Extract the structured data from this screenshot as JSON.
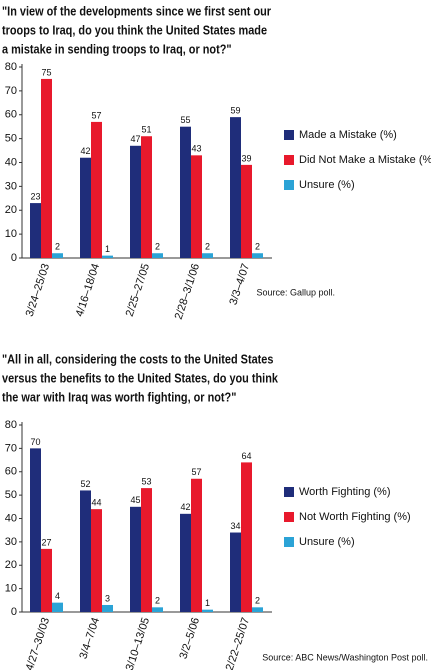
{
  "chart_data": [
    {
      "type": "bar",
      "title": [
        "\"In view of the developments since we first sent our",
        "troops to Iraq, do you think the United States made",
        "a mistake in sending troops to Iraq, or not?\""
      ],
      "categories": [
        "3/24–25/03",
        "4/16–18/04",
        "2/25–27/05",
        "2/28–3/1/06",
        "3/3–4/07"
      ],
      "series": [
        {
          "name": "Made a Mistake (%)",
          "color": "#1f2d7a",
          "values": [
            23,
            42,
            47,
            55,
            59
          ]
        },
        {
          "name": "Did Not Make a Mistake (%)",
          "color": "#e8192c",
          "values": [
            75,
            57,
            51,
            43,
            39
          ]
        },
        {
          "name": "Unsure (%)",
          "color": "#2ba3d6",
          "values": [
            2,
            1,
            2,
            2,
            2
          ]
        }
      ],
      "ylim": [
        0,
        80
      ],
      "yticks": [
        0,
        10,
        20,
        30,
        40,
        50,
        60,
        70,
        80
      ],
      "legend": "right",
      "source": "Source: Gallup poll."
    },
    {
      "type": "bar",
      "title": [
        "\"All in all, considering the costs to the United States",
        "versus the benefits to the United States, do you think",
        "the war with Iraq was worth fighting, or not?\""
      ],
      "categories": [
        "4/27–30/03",
        "3/4–7/04",
        "3/10–13/05",
        "3/2–5/06",
        "2/22–25/07"
      ],
      "series": [
        {
          "name": "Worth Fighting (%)",
          "color": "#1f2d7a",
          "values": [
            70,
            52,
            45,
            42,
            34
          ]
        },
        {
          "name": "Not Worth Fighting (%)",
          "color": "#e8192c",
          "values": [
            27,
            44,
            53,
            57,
            64
          ]
        },
        {
          "name": "Unsure (%)",
          "color": "#2ba3d6",
          "values": [
            4,
            3,
            2,
            1,
            2
          ]
        }
      ],
      "ylim": [
        0,
        80
      ],
      "yticks": [
        0,
        10,
        20,
        30,
        40,
        50,
        60,
        70,
        80
      ],
      "legend": "right",
      "source": "Source: ABC News/Washington Post poll."
    }
  ]
}
